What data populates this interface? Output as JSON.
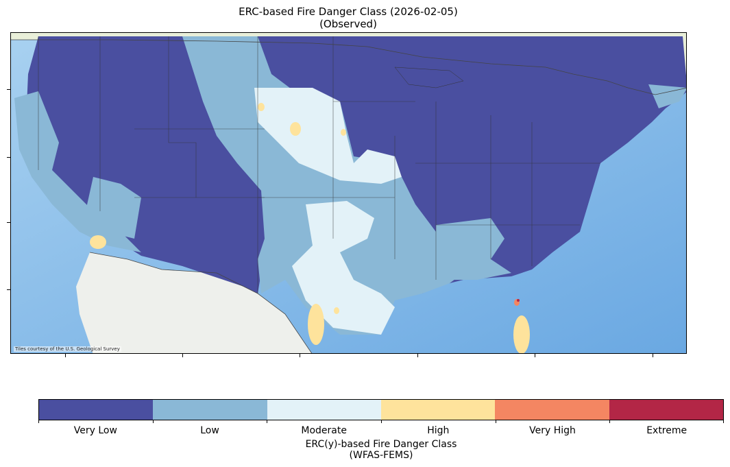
{
  "title": {
    "line1": "ERC-based Fire Danger Class (2026-02-05)",
    "line2": "(Observed)"
  },
  "map": {
    "attribution": "Tiles courtesy of the U.S. Geological Survey",
    "colors": {
      "ocean": "#8fc2ea",
      "land_background": "#eef1e4",
      "border": "#333333"
    }
  },
  "legend": {
    "title_line1": "ERC(y)-based Fire Danger Class",
    "title_line2": "(WFAS-FEMS)",
    "classes": [
      {
        "label": "Very Low",
        "color": "#4a4fa0"
      },
      {
        "label": "Low",
        "color": "#8ab8d6"
      },
      {
        "label": "Moderate",
        "color": "#e3f2f8"
      },
      {
        "label": "High",
        "color": "#fee39c"
      },
      {
        "label": "Very High",
        "color": "#f48662"
      },
      {
        "label": "Extreme",
        "color": "#b32646"
      }
    ]
  }
}
